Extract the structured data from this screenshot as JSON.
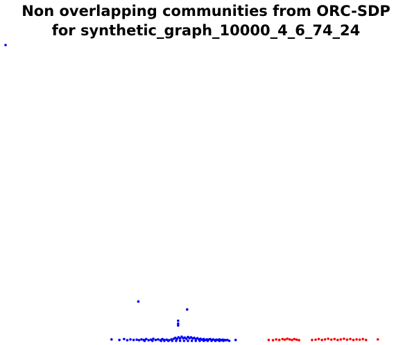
{
  "chart_data": {
    "type": "scatter",
    "title_lines": [
      "Non overlapping communities from ORC-SDP",
      "for synthetic_graph_10000_4_6_74_24"
    ],
    "xlabel": "",
    "ylabel": "",
    "axes_visible": false,
    "grid": false,
    "legend": "none",
    "xlim": [
      0,
      100
    ],
    "ylim": [
      0,
      100
    ],
    "series": [
      {
        "color": "#0000ff",
        "points": [
          [
            0.7,
            100
          ],
          [
            34.4,
            13.3
          ],
          [
            46.8,
            10.6
          ],
          [
            44.5,
            6.8
          ],
          [
            44.5,
            5.8
          ],
          [
            44.5,
            5.2
          ],
          [
            27.6,
            0.5
          ],
          [
            29.6,
            0.3
          ],
          [
            30.8,
            0.6
          ],
          [
            31.6,
            0.2
          ],
          [
            32.4,
            0.5
          ],
          [
            33.2,
            0.3
          ],
          [
            34.0,
            0.4
          ],
          [
            34.6,
            0.2
          ],
          [
            35.2,
            0.5
          ],
          [
            35.8,
            0.3
          ],
          [
            36.4,
            0.6
          ],
          [
            37.0,
            0.2
          ],
          [
            37.6,
            0.4
          ],
          [
            38.2,
            0.7
          ],
          [
            38.8,
            0.3
          ],
          [
            39.4,
            0.5
          ],
          [
            40.0,
            0.2
          ],
          [
            40.5,
            0.6
          ],
          [
            41.0,
            0.3
          ],
          [
            41.6,
            0.4
          ],
          [
            42.2,
            0.2
          ],
          [
            42.8,
            0.5
          ],
          [
            43.4,
            0.7
          ],
          [
            43.8,
            1.0
          ],
          [
            44.2,
            0.6
          ],
          [
            44.6,
            1.2
          ],
          [
            45.0,
            0.8
          ],
          [
            45.4,
            1.4
          ],
          [
            45.8,
            0.9
          ],
          [
            46.2,
            1.1
          ],
          [
            46.6,
            0.7
          ],
          [
            47.0,
            1.3
          ],
          [
            47.4,
            0.9
          ],
          [
            47.8,
            1.2
          ],
          [
            48.2,
            0.8
          ],
          [
            48.6,
            1.0
          ],
          [
            49.0,
            0.6
          ],
          [
            49.4,
            0.9
          ],
          [
            49.8,
            0.5
          ],
          [
            50.2,
            0.7
          ],
          [
            50.6,
            0.4
          ],
          [
            51.0,
            0.6
          ],
          [
            51.4,
            0.3
          ],
          [
            51.8,
            0.5
          ],
          [
            52.2,
            0.4
          ],
          [
            52.6,
            0.6
          ],
          [
            53.0,
            0.3
          ],
          [
            53.4,
            0.5
          ],
          [
            53.8,
            0.2
          ],
          [
            54.2,
            0.4
          ],
          [
            54.6,
            0.3
          ],
          [
            55.0,
            0.5
          ],
          [
            55.4,
            0.2
          ],
          [
            55.8,
            0.4
          ],
          [
            56.2,
            0.3
          ],
          [
            56.6,
            0.2
          ],
          [
            57.0,
            0.3
          ],
          [
            59.1,
            0.3
          ],
          [
            40.2,
            0.0
          ],
          [
            41.0,
            0.0
          ],
          [
            42.0,
            0.0
          ],
          [
            43.0,
            0.0
          ],
          [
            44.0,
            0.0
          ],
          [
            45.0,
            0.0
          ],
          [
            46.0,
            0.0
          ],
          [
            47.0,
            0.0
          ],
          [
            48.0,
            0.0
          ],
          [
            49.0,
            0.0
          ],
          [
            50.0,
            0.0
          ],
          [
            51.0,
            0.0
          ],
          [
            52.0,
            0.0
          ],
          [
            53.0,
            0.0
          ],
          [
            54.0,
            0.0
          ],
          [
            55.0,
            0.0
          ],
          [
            56.0,
            0.0
          ],
          [
            57.5,
            0.0
          ],
          [
            36.0,
            0.0
          ],
          [
            38.0,
            0.0
          ]
        ]
      },
      {
        "color": "#ff0000",
        "points": [
          [
            67.5,
            0.3
          ],
          [
            68.6,
            0.2
          ],
          [
            69.4,
            0.5
          ],
          [
            70.2,
            0.3
          ],
          [
            71.0,
            0.6
          ],
          [
            71.6,
            0.4
          ],
          [
            72.2,
            0.7
          ],
          [
            72.8,
            0.5
          ],
          [
            73.4,
            0.3
          ],
          [
            74.0,
            0.6
          ],
          [
            74.6,
            0.4
          ],
          [
            75.2,
            0.2
          ],
          [
            78.5,
            0.3
          ],
          [
            79.4,
            0.4
          ],
          [
            80.2,
            0.6
          ],
          [
            81.0,
            0.3
          ],
          [
            81.8,
            0.5
          ],
          [
            82.6,
            0.7
          ],
          [
            83.4,
            0.4
          ],
          [
            84.2,
            0.6
          ],
          [
            85.0,
            0.3
          ],
          [
            85.8,
            0.5
          ],
          [
            86.6,
            0.7
          ],
          [
            87.4,
            0.4
          ],
          [
            88.2,
            0.6
          ],
          [
            89.0,
            0.3
          ],
          [
            89.8,
            0.5
          ],
          [
            90.6,
            0.4
          ],
          [
            91.4,
            0.6
          ],
          [
            92.2,
            0.3
          ],
          [
            95.2,
            0.5
          ]
        ]
      }
    ]
  }
}
